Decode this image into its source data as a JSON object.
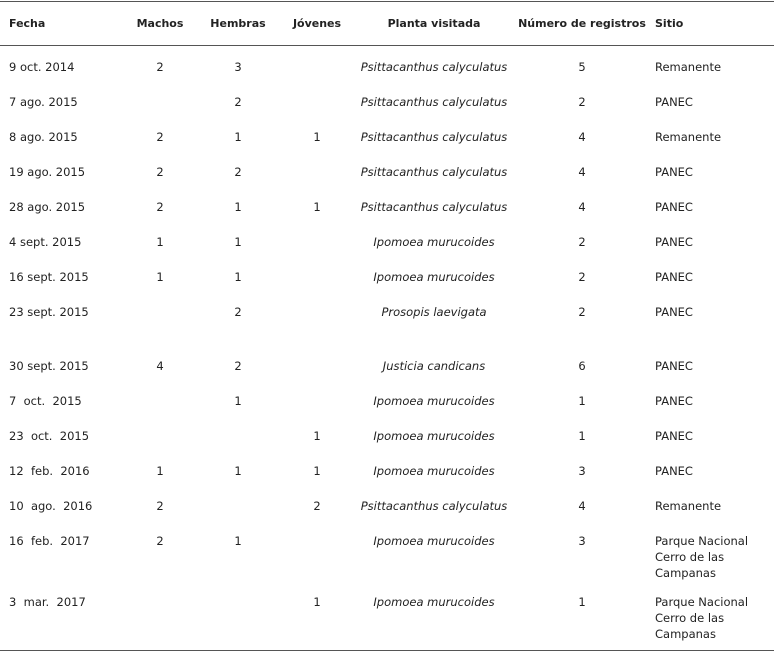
{
  "table": {
    "header": [
      "Fecha",
      "Machos",
      "Hembras",
      "Jóvenes",
      "Planta visitada",
      "Número de registros",
      "Sitio"
    ],
    "rows": [
      [
        "9 oct. 2014",
        "2",
        "3",
        null,
        "Psittacanthus calyculatus",
        "5",
        "Remanente"
      ],
      [
        "7 ago. 2015",
        null,
        "2",
        null,
        "Psittacanthus calyculatus",
        "2",
        "PANEC"
      ],
      [
        "8 ago. 2015",
        "2",
        "1",
        "1",
        "Psittacanthus calyculatus",
        "4",
        "Remanente"
      ],
      [
        "19 ago. 2015",
        "2",
        "2",
        null,
        "Psittacanthus calyculatus",
        "4",
        "PANEC"
      ],
      [
        "28 ago. 2015",
        "2",
        "1",
        "1",
        "Psittacanthus calyculatus",
        "4",
        "PANEC"
      ],
      [
        "4 sept. 2015",
        "1",
        "1",
        null,
        "Ipomoea murucoides",
        "2",
        "PANEC"
      ],
      [
        "16 sept. 2015",
        "1",
        "1",
        null,
        "Ipomoea murucoides",
        "2",
        "PANEC"
      ],
      [
        "23 sept. 2015",
        null,
        "2",
        null,
        "Prosopis laevigata",
        "2",
        "PANEC"
      ],
      [
        "30 sept. 2015",
        "4",
        "2",
        null,
        "Justicia candicans",
        "6",
        "PANEC"
      ],
      [
        "7  oct.  2015",
        null,
        "1",
        null,
        "Ipomoea murucoides",
        "1",
        "PANEC"
      ],
      [
        "23  oct.  2015",
        null,
        null,
        "1",
        "Ipomoea murucoides",
        "1",
        "PANEC"
      ],
      [
        "12  feb.  2016",
        "1",
        "1",
        "1",
        "Ipomoea murucoides",
        "3",
        "PANEC"
      ],
      [
        "10  ago.  2016",
        "2",
        null,
        "2",
        "Psittacanthus calyculatus",
        "4",
        "Remanente"
      ],
      [
        "16  feb.  2017",
        "2",
        "1",
        null,
        "Ipomoea murucoides",
        "3",
        "Parque Nacional Cerro de las Campanas"
      ],
      [
        "3  mar.  2017",
        null,
        null,
        "1",
        "Ipomoea murucoides",
        "1",
        "Parque Nacional Cerro de las Campanas"
      ]
    ]
  }
}
